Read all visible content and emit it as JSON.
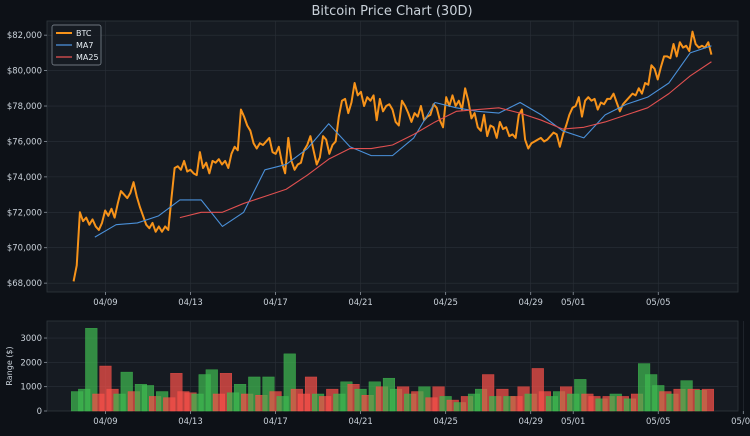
{
  "chart_data": [
    {
      "type": "line",
      "title": "Bitcoin Price Chart (30D)",
      "xlabel": "",
      "ylabel": "",
      "x_start": "2024-04-07T12:00",
      "x_end": "2024-05-07T12:00",
      "xlim": [
        "2024-04-06T06:00",
        "2024-05-08T18:00"
      ],
      "ylim": [
        67500,
        82800
      ],
      "y_ticks": [
        68000,
        70000,
        72000,
        74000,
        76000,
        78000,
        80000,
        82000
      ],
      "y_tick_labels": [
        "$68,000",
        "$70,000",
        "$72,000",
        "$74,000",
        "$76,000",
        "$78,000",
        "$80,000",
        "$82,000"
      ],
      "x_ticks": [
        "2024-04-09",
        "2024-04-13",
        "2024-04-17",
        "2024-04-21",
        "2024-04-25",
        "2024-04-29",
        "2024-05-01",
        "2024-05-05"
      ],
      "x_tick_labels": [
        "04/09",
        "04/13",
        "04/17",
        "04/21",
        "04/25",
        "04/29",
        "05/01",
        "05/05"
      ],
      "grid": true,
      "legend": "top-left",
      "colors": {
        "BTC": "#f7931a",
        "MA7": "#4a90d9",
        "MA25": "#e05050"
      },
      "series": [
        {
          "name": "BTC",
          "values": [
            68100,
            69000,
            72000,
            71500,
            71700,
            71300,
            71600,
            71200,
            71000,
            71400,
            72100,
            71800,
            72200,
            71700,
            72500,
            73200,
            73000,
            72800,
            73100,
            73700,
            72900,
            72300,
            71800,
            71300,
            71100,
            71400,
            70900,
            71200,
            70900,
            71200,
            71000,
            72800,
            74500,
            74600,
            74400,
            74900,
            74300,
            74400,
            74200,
            74100,
            75400,
            74500,
            74800,
            74200,
            74900,
            74800,
            75000,
            74700,
            74900,
            74500,
            75300,
            75700,
            75500,
            77800,
            77400,
            76900,
            76600,
            75900,
            75600,
            75900,
            75800,
            76000,
            76200,
            75400,
            75300,
            75700,
            74800,
            74200,
            76200,
            74900,
            74400,
            74700,
            74800,
            75500,
            75800,
            76300,
            75500,
            74700,
            75100,
            76300,
            76100,
            75300,
            75800,
            76000,
            77400,
            78300,
            78400,
            77600,
            78200,
            79300,
            78600,
            78800,
            78000,
            78500,
            78300,
            78600,
            77200,
            78400,
            77700,
            78000,
            78100,
            77800,
            77100,
            76900,
            78300,
            78000,
            77600,
            77100,
            77600,
            77400,
            78000,
            77200,
            77400,
            77500,
            78100,
            77900,
            77200,
            76800,
            78500,
            78000,
            78600,
            78000,
            78300,
            77800,
            79000,
            78300,
            77300,
            77600,
            76800,
            76600,
            77500,
            76300,
            76900,
            76800,
            76200,
            77100,
            76700,
            76800,
            76300,
            76400,
            76200,
            77500,
            77800,
            76100,
            75600,
            75900,
            76000,
            76100,
            76200,
            76000,
            76100,
            76300,
            76500,
            76400,
            75700,
            76400,
            76900,
            77500,
            77900,
            78000,
            78500,
            77400,
            78300,
            78500,
            78300,
            78400,
            77800,
            78200,
            78100,
            78400,
            78400,
            78700,
            78200,
            77700,
            78100,
            78300,
            78500,
            78700,
            78600,
            79000,
            78700,
            79300,
            79200,
            80300,
            80100,
            79500,
            80200,
            80800,
            80800,
            80700,
            81500,
            80800,
            81600,
            81300,
            81400,
            81100,
            82200,
            81500,
            81300,
            81400,
            81300,
            81600,
            80900
          ],
          "stroke_px": 2
        },
        {
          "name": "MA7",
          "points_x": [
            "2024-04-08T12:00",
            "2024-04-09T12:00",
            "2024-04-10T12:00",
            "2024-04-11T12:00",
            "2024-04-12T12:00",
            "2024-04-13T12:00",
            "2024-04-14T12:00",
            "2024-04-15T12:00",
            "2024-04-16T12:00",
            "2024-04-17T12:00",
            "2024-04-18T12:00",
            "2024-04-19T12:00",
            "2024-04-20T12:00",
            "2024-04-21T12:00",
            "2024-04-22T12:00",
            "2024-04-23T12:00",
            "2024-04-24T12:00",
            "2024-04-25T12:00",
            "2024-04-26T12:00",
            "2024-04-27T12:00",
            "2024-04-28T12:00",
            "2024-04-29T12:00",
            "2024-04-30T12:00",
            "2024-05-01T12:00",
            "2024-05-02T12:00",
            "2024-05-03T12:00",
            "2024-05-04T12:00",
            "2024-05-05T12:00",
            "2024-05-06T12:00",
            "2024-05-07T12:00"
          ],
          "values": [
            70600,
            71300,
            71400,
            71800,
            72700,
            72700,
            71200,
            72000,
            74400,
            74700,
            75600,
            77000,
            75700,
            75200,
            75200,
            76200,
            78200,
            77900,
            77700,
            77600,
            78200,
            77500,
            76600,
            76200,
            77500,
            78100,
            78500,
            79300,
            81000,
            81400
          ]
        },
        {
          "name": "MA25",
          "points_x": [
            "2024-04-12T12:00",
            "2024-04-13T12:00",
            "2024-04-14T12:00",
            "2024-04-15T12:00",
            "2024-04-16T12:00",
            "2024-04-17T12:00",
            "2024-04-18T12:00",
            "2024-04-19T12:00",
            "2024-04-20T12:00",
            "2024-04-21T12:00",
            "2024-04-22T12:00",
            "2024-04-23T12:00",
            "2024-04-24T12:00",
            "2024-04-25T12:00",
            "2024-04-26T12:00",
            "2024-04-27T12:00",
            "2024-04-28T12:00",
            "2024-04-29T12:00",
            "2024-04-30T12:00",
            "2024-05-01T12:00",
            "2024-05-02T12:00",
            "2024-05-03T12:00",
            "2024-05-04T12:00",
            "2024-05-05T12:00",
            "2024-05-06T12:00",
            "2024-05-07T12:00"
          ],
          "values": [
            71700,
            72000,
            72000,
            72500,
            72900,
            73300,
            74100,
            75000,
            75600,
            75600,
            75800,
            76400,
            77100,
            77700,
            77800,
            77900,
            77600,
            77200,
            76700,
            76800,
            77100,
            77500,
            77900,
            78700,
            79700,
            80500
          ]
        }
      ]
    },
    {
      "type": "bar",
      "ylabel": "Range ($)",
      "xlabel": "",
      "ylim": [
        0,
        3700
      ],
      "y_ticks": [
        0,
        1000,
        2000,
        3000
      ],
      "y_tick_labels": [
        "0",
        "1000",
        "2000",
        "3000"
      ],
      "x_ticks": [
        "2024-04-09",
        "2024-04-13",
        "2024-04-17",
        "2024-04-21",
        "2024-04-25",
        "2024-04-29",
        "2024-05-01",
        "2024-05-05",
        "2024-05-09"
      ],
      "x_tick_labels": [
        "04/09",
        "04/13",
        "04/17",
        "04/21",
        "04/25",
        "04/29",
        "05/01",
        "05/05",
        "05/09"
      ],
      "grid": true,
      "bar_width_days": 0.55,
      "bars": [
        {
          "x": "2024-04-07T16:00",
          "v": 800,
          "c": "up"
        },
        {
          "x": "2024-04-08T00:00",
          "v": 900,
          "c": "up"
        },
        {
          "x": "2024-04-08T08:00",
          "v": 3400,
          "c": "up"
        },
        {
          "x": "2024-04-08T16:00",
          "v": 700,
          "c": "down"
        },
        {
          "x": "2024-04-09T00:00",
          "v": 1850,
          "c": "down"
        },
        {
          "x": "2024-04-09T08:00",
          "v": 900,
          "c": "down"
        },
        {
          "x": "2024-04-09T16:00",
          "v": 700,
          "c": "up"
        },
        {
          "x": "2024-04-10T00:00",
          "v": 1600,
          "c": "up"
        },
        {
          "x": "2024-04-10T08:00",
          "v": 800,
          "c": "down"
        },
        {
          "x": "2024-04-10T16:00",
          "v": 1100,
          "c": "up"
        },
        {
          "x": "2024-04-11T00:00",
          "v": 1050,
          "c": "up"
        },
        {
          "x": "2024-04-11T08:00",
          "v": 600,
          "c": "down"
        },
        {
          "x": "2024-04-11T16:00",
          "v": 800,
          "c": "up"
        },
        {
          "x": "2024-04-12T00:00",
          "v": 550,
          "c": "down"
        },
        {
          "x": "2024-04-12T08:00",
          "v": 1550,
          "c": "down"
        },
        {
          "x": "2024-04-12T16:00",
          "v": 800,
          "c": "down"
        },
        {
          "x": "2024-04-13T00:00",
          "v": 750,
          "c": "down"
        },
        {
          "x": "2024-04-13T08:00",
          "v": 700,
          "c": "up"
        },
        {
          "x": "2024-04-13T16:00",
          "v": 1500,
          "c": "up"
        },
        {
          "x": "2024-04-14T00:00",
          "v": 1700,
          "c": "up"
        },
        {
          "x": "2024-04-14T08:00",
          "v": 700,
          "c": "down"
        },
        {
          "x": "2024-04-14T16:00",
          "v": 1550,
          "c": "down"
        },
        {
          "x": "2024-04-15T00:00",
          "v": 750,
          "c": "up"
        },
        {
          "x": "2024-04-15T08:00",
          "v": 1100,
          "c": "up"
        },
        {
          "x": "2024-04-15T16:00",
          "v": 700,
          "c": "down"
        },
        {
          "x": "2024-04-16T00:00",
          "v": 1400,
          "c": "up"
        },
        {
          "x": "2024-04-16T08:00",
          "v": 650,
          "c": "down"
        },
        {
          "x": "2024-04-16T16:00",
          "v": 1400,
          "c": "up"
        },
        {
          "x": "2024-04-17T00:00",
          "v": 800,
          "c": "down"
        },
        {
          "x": "2024-04-17T08:00",
          "v": 600,
          "c": "up"
        },
        {
          "x": "2024-04-17T16:00",
          "v": 2350,
          "c": "up"
        },
        {
          "x": "2024-04-18T00:00",
          "v": 900,
          "c": "down"
        },
        {
          "x": "2024-04-18T08:00",
          "v": 700,
          "c": "down"
        },
        {
          "x": "2024-04-18T16:00",
          "v": 1400,
          "c": "down"
        },
        {
          "x": "2024-04-19T00:00",
          "v": 700,
          "c": "up"
        },
        {
          "x": "2024-04-19T08:00",
          "v": 600,
          "c": "down"
        },
        {
          "x": "2024-04-19T16:00",
          "v": 900,
          "c": "down"
        },
        {
          "x": "2024-04-20T00:00",
          "v": 700,
          "c": "up"
        },
        {
          "x": "2024-04-20T08:00",
          "v": 1200,
          "c": "up"
        },
        {
          "x": "2024-04-20T16:00",
          "v": 1100,
          "c": "down"
        },
        {
          "x": "2024-04-21T00:00",
          "v": 900,
          "c": "up"
        },
        {
          "x": "2024-04-21T08:00",
          "v": 650,
          "c": "down"
        },
        {
          "x": "2024-04-21T16:00",
          "v": 1200,
          "c": "up"
        },
        {
          "x": "2024-04-22T00:00",
          "v": 1000,
          "c": "down"
        },
        {
          "x": "2024-04-22T08:00",
          "v": 1350,
          "c": "up"
        },
        {
          "x": "2024-04-22T16:00",
          "v": 900,
          "c": "up"
        },
        {
          "x": "2024-04-23T00:00",
          "v": 1000,
          "c": "down"
        },
        {
          "x": "2024-04-23T08:00",
          "v": 700,
          "c": "up"
        },
        {
          "x": "2024-04-23T16:00",
          "v": 800,
          "c": "down"
        },
        {
          "x": "2024-04-24T00:00",
          "v": 1000,
          "c": "up"
        },
        {
          "x": "2024-04-24T08:00",
          "v": 550,
          "c": "down"
        },
        {
          "x": "2024-04-24T16:00",
          "v": 1000,
          "c": "down"
        },
        {
          "x": "2024-04-25T00:00",
          "v": 600,
          "c": "up"
        },
        {
          "x": "2024-04-25T08:00",
          "v": 450,
          "c": "down"
        },
        {
          "x": "2024-04-25T16:00",
          "v": 350,
          "c": "up"
        },
        {
          "x": "2024-04-26T00:00",
          "v": 600,
          "c": "down"
        },
        {
          "x": "2024-04-26T08:00",
          "v": 700,
          "c": "up"
        },
        {
          "x": "2024-04-26T16:00",
          "v": 900,
          "c": "up"
        },
        {
          "x": "2024-04-27T00:00",
          "v": 1500,
          "c": "down"
        },
        {
          "x": "2024-04-27T08:00",
          "v": 600,
          "c": "up"
        },
        {
          "x": "2024-04-27T16:00",
          "v": 900,
          "c": "down"
        },
        {
          "x": "2024-04-28T00:00",
          "v": 600,
          "c": "up"
        },
        {
          "x": "2024-04-28T08:00",
          "v": 600,
          "c": "down"
        },
        {
          "x": "2024-04-28T16:00",
          "v": 1000,
          "c": "down"
        },
        {
          "x": "2024-04-29T00:00",
          "v": 700,
          "c": "up"
        },
        {
          "x": "2024-04-29T08:00",
          "v": 1750,
          "c": "down"
        },
        {
          "x": "2024-04-29T16:00",
          "v": 800,
          "c": "down"
        },
        {
          "x": "2024-04-30T00:00",
          "v": 600,
          "c": "up"
        },
        {
          "x": "2024-04-30T08:00",
          "v": 800,
          "c": "up"
        },
        {
          "x": "2024-04-30T16:00",
          "v": 1000,
          "c": "down"
        },
        {
          "x": "2024-05-01T00:00",
          "v": 700,
          "c": "up"
        },
        {
          "x": "2024-05-01T08:00",
          "v": 1300,
          "c": "up"
        },
        {
          "x": "2024-05-01T16:00",
          "v": 700,
          "c": "down"
        },
        {
          "x": "2024-05-02T00:00",
          "v": 600,
          "c": "down"
        },
        {
          "x": "2024-05-02T08:00",
          "v": 500,
          "c": "up"
        },
        {
          "x": "2024-05-02T16:00",
          "v": 600,
          "c": "down"
        },
        {
          "x": "2024-05-03T00:00",
          "v": 700,
          "c": "up"
        },
        {
          "x": "2024-05-03T08:00",
          "v": 600,
          "c": "down"
        },
        {
          "x": "2024-05-03T16:00",
          "v": 500,
          "c": "up"
        },
        {
          "x": "2024-05-04T00:00",
          "v": 700,
          "c": "down"
        },
        {
          "x": "2024-05-04T08:00",
          "v": 1950,
          "c": "up"
        },
        {
          "x": "2024-05-04T16:00",
          "v": 1500,
          "c": "up"
        },
        {
          "x": "2024-05-05T00:00",
          "v": 1050,
          "c": "up"
        },
        {
          "x": "2024-05-05T08:00",
          "v": 800,
          "c": "down"
        },
        {
          "x": "2024-05-05T16:00",
          "v": 700,
          "c": "up"
        },
        {
          "x": "2024-05-06T00:00",
          "v": 900,
          "c": "down"
        },
        {
          "x": "2024-05-06T08:00",
          "v": 1250,
          "c": "up"
        },
        {
          "x": "2024-05-06T16:00",
          "v": 900,
          "c": "down"
        },
        {
          "x": "2024-05-07T00:00",
          "v": 850,
          "c": "up"
        },
        {
          "x": "2024-05-07T08:00",
          "v": 900,
          "c": "down"
        }
      ],
      "colors": {
        "up": "#3fb950",
        "down": "#f85149"
      }
    }
  ]
}
